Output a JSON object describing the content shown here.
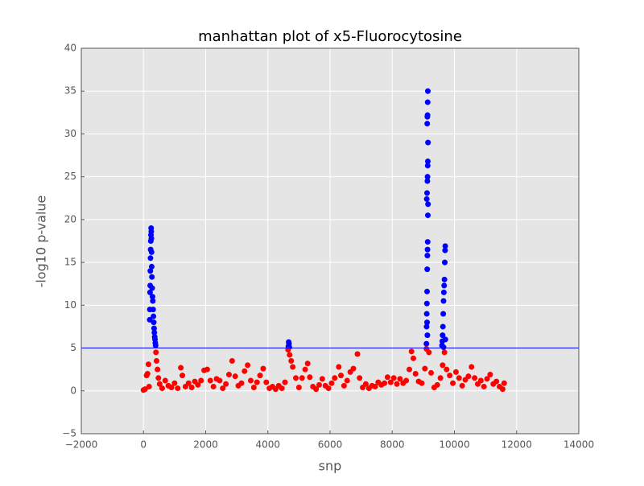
{
  "chart_data": {
    "type": "scatter",
    "title": "manhattan plot of x5-Fluorocytosine",
    "x_label": "snp",
    "y_label": "-log10 p-value",
    "xlim": [
      -2000,
      14000
    ],
    "xticks": [
      {
        "value": -2000,
        "label": "−2000"
      },
      0,
      2000,
      4000,
      6000,
      8000,
      10000,
      12000,
      14000
    ],
    "ylim": [
      -5,
      40
    ],
    "yticks": [
      {
        "value": -5,
        "label": "−5"
      },
      0,
      5,
      10,
      15,
      20,
      25,
      30,
      35,
      40
    ],
    "grid": true,
    "hline": {
      "value": 5,
      "color": "#0000ff"
    },
    "series": [
      {
        "color": "#0000ff",
        "x": [
          200,
          205,
          210,
          215,
          220,
          225,
          230,
          235,
          240,
          245,
          250,
          255,
          260,
          265,
          270,
          280,
          290,
          300,
          310,
          320,
          330,
          340,
          350,
          360,
          370,
          380,
          390,
          4660,
          4670,
          4680,
          4690,
          9100,
          9105,
          9110,
          9115,
          9120,
          9125,
          9130,
          9135,
          9140,
          9145,
          9150,
          9110,
          9120,
          9130,
          9135,
          9140,
          9145,
          9150,
          9125,
          9130,
          9135,
          9140,
          9145,
          9120,
          9130,
          9600,
          9610,
          9620,
          9630,
          9640,
          9650,
          9660,
          9670,
          9680,
          9690,
          9700,
          9705,
          9650,
          9710
        ],
        "values": [
          8.3,
          9.5,
          11.5,
          12.3,
          14,
          15.5,
          16.5,
          17.5,
          18.2,
          19,
          18.6,
          17.8,
          16.2,
          14.5,
          13.3,
          12,
          11,
          10.5,
          9.5,
          8.7,
          8,
          7.3,
          6.8,
          6.3,
          6,
          5.6,
          5.3,
          5.2,
          5.7,
          5.5,
          5.1,
          5.5,
          7.5,
          9,
          10.2,
          11.6,
          14.2,
          15.8,
          16.5,
          17.4,
          20.5,
          21.8,
          22.4,
          23.1,
          24.5,
          25,
          26.3,
          26.8,
          29,
          31.2,
          32,
          32.2,
          33.7,
          35,
          8,
          6.5,
          5.3,
          5.8,
          6.5,
          7.5,
          9,
          10.5,
          11.5,
          12.3,
          13,
          15,
          16.4,
          16.9,
          5.1,
          6
        ]
      },
      {
        "color": "#ff0000",
        "x": [
          0,
          50,
          100,
          130,
          160,
          180,
          400,
          420,
          450,
          480,
          520,
          600,
          700,
          800,
          900,
          1000,
          1100,
          1200,
          1250,
          1350,
          1450,
          1550,
          1650,
          1750,
          1850,
          1950,
          2050,
          2150,
          2250,
          2350,
          2450,
          2550,
          2650,
          2750,
          2850,
          2950,
          3050,
          3150,
          3250,
          3350,
          3450,
          3550,
          3650,
          3750,
          3850,
          3950,
          4050,
          4150,
          4250,
          4350,
          4450,
          4550,
          4650,
          4700,
          4750,
          4800,
          4900,
          5000,
          5100,
          5200,
          5280,
          5350,
          5450,
          5550,
          5650,
          5750,
          5850,
          5950,
          6050,
          6150,
          6280,
          6350,
          6450,
          6550,
          6650,
          6750,
          6880,
          6950,
          7050,
          7150,
          7250,
          7350,
          7450,
          7550,
          7650,
          7750,
          7850,
          7950,
          8050,
          8150,
          8250,
          8350,
          8450,
          8550,
          8620,
          8680,
          8750,
          8850,
          8950,
          9050,
          9100,
          9180,
          9250,
          9350,
          9450,
          9550,
          9620,
          9680,
          9750,
          9850,
          9950,
          10050,
          10150,
          10250,
          10350,
          10450,
          10550,
          10650,
          10750,
          10850,
          10950,
          11050,
          11150,
          11250,
          11350,
          11450,
          11550,
          11600
        ],
        "values": [
          0.1,
          0.2,
          1.8,
          2,
          3.1,
          0.5,
          4.5,
          3.5,
          2.5,
          1.5,
          0.8,
          0.3,
          1.2,
          0.6,
          0.4,
          0.9,
          0.3,
          2.7,
          1.8,
          0.5,
          0.9,
          0.4,
          1.1,
          0.7,
          1.2,
          2.4,
          2.5,
          1.2,
          0.5,
          1.4,
          1.2,
          0.3,
          0.8,
          1.9,
          3.5,
          1.7,
          0.6,
          0.9,
          2.3,
          3.0,
          1.2,
          0.4,
          1.0,
          1.8,
          2.6,
          1.0,
          0.3,
          0.5,
          0.2,
          0.6,
          0.3,
          1.0,
          4.8,
          4.2,
          3.5,
          2.8,
          1.5,
          0.4,
          1.5,
          2.5,
          3.2,
          1.6,
          0.5,
          0.2,
          0.7,
          1.4,
          0.6,
          0.3,
          0.9,
          1.5,
          2.8,
          1.8,
          0.6,
          1.2,
          2.2,
          2.6,
          4.3,
          1.5,
          0.4,
          0.8,
          0.3,
          0.6,
          0.5,
          1.0,
          0.7,
          0.9,
          1.6,
          1.0,
          1.5,
          0.8,
          1.4,
          0.9,
          1.2,
          2.5,
          4.6,
          3.8,
          2.0,
          1.1,
          0.9,
          2.6,
          4.9,
          4.5,
          2.1,
          0.4,
          0.7,
          1.5,
          3.0,
          4.5,
          2.5,
          1.8,
          0.9,
          2.2,
          1.5,
          0.6,
          1.3,
          1.7,
          2.8,
          1.5,
          0.8,
          1.2,
          0.5,
          1.4,
          1.9,
          0.8,
          1.1,
          0.5,
          0.2,
          0.9
        ]
      }
    ]
  }
}
